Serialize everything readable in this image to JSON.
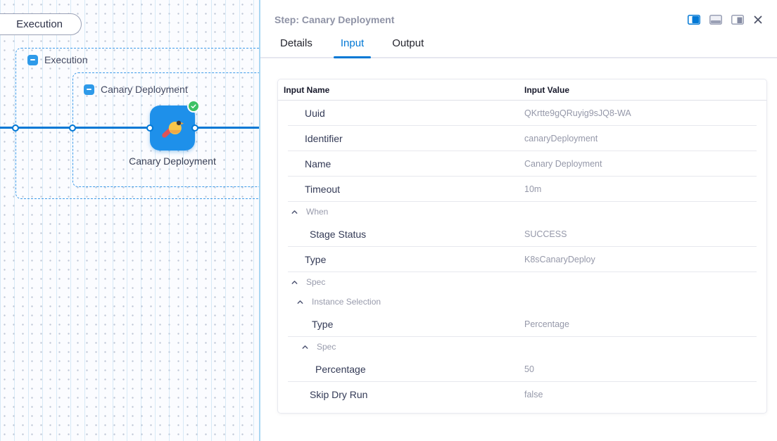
{
  "colors": {
    "accent": "#0278D5",
    "node_blue": "#1E90EA",
    "success_green": "#3EC264",
    "dashed_border": "#3D9BE9"
  },
  "canvas": {
    "stage_pill_label": "Execution",
    "outer_group_label": "Execution",
    "inner_group_label": "Canary Deployment",
    "node_label": "Canary Deployment",
    "node_status": "success",
    "icons": {
      "node_icon": "canary-bird-icon",
      "status_icon": "success-check-icon",
      "collapse_icon": "minus-icon"
    }
  },
  "panel": {
    "title": "Step: Canary Deployment",
    "tabs": [
      {
        "label": "Details",
        "active": false
      },
      {
        "label": "Input",
        "active": true
      },
      {
        "label": "Output",
        "active": false
      }
    ],
    "action_icons": [
      "layout-split-right-icon",
      "layout-split-bottom-icon",
      "layout-float-icon",
      "close-icon"
    ],
    "table": {
      "columns": [
        "Input Name",
        "Input Value"
      ],
      "rows": [
        {
          "kind": "row",
          "level": 1,
          "name": "Uuid",
          "value": "QKrtte9gQRuyig9sJQ8-WA",
          "divider": true
        },
        {
          "kind": "row",
          "level": 1,
          "name": "Identifier",
          "value": "canaryDeployment",
          "divider": true
        },
        {
          "kind": "row",
          "level": 1,
          "name": "Name",
          "value": "Canary Deployment",
          "divider": true
        },
        {
          "kind": "row",
          "level": 1,
          "name": "Timeout",
          "value": "10m",
          "divider": true
        },
        {
          "kind": "group",
          "level": 1,
          "name": "When"
        },
        {
          "kind": "row",
          "level": 2,
          "name": "Stage Status",
          "value": "SUCCESS",
          "divider": true
        },
        {
          "kind": "row",
          "level": 1,
          "name": "Type",
          "value": "K8sCanaryDeploy",
          "divider": true
        },
        {
          "kind": "group",
          "level": 1,
          "name": "Spec"
        },
        {
          "kind": "group",
          "level": 2,
          "name": "Instance Selection"
        },
        {
          "kind": "row",
          "level": 3,
          "name": "Type",
          "value": "Percentage",
          "divider": true
        },
        {
          "kind": "group",
          "level": 3,
          "name": "Spec"
        },
        {
          "kind": "row",
          "level": 4,
          "name": "Percentage",
          "value": "50",
          "divider": true
        },
        {
          "kind": "row",
          "level": 2,
          "name": "Skip Dry Run",
          "value": "false",
          "divider": false
        }
      ]
    }
  }
}
